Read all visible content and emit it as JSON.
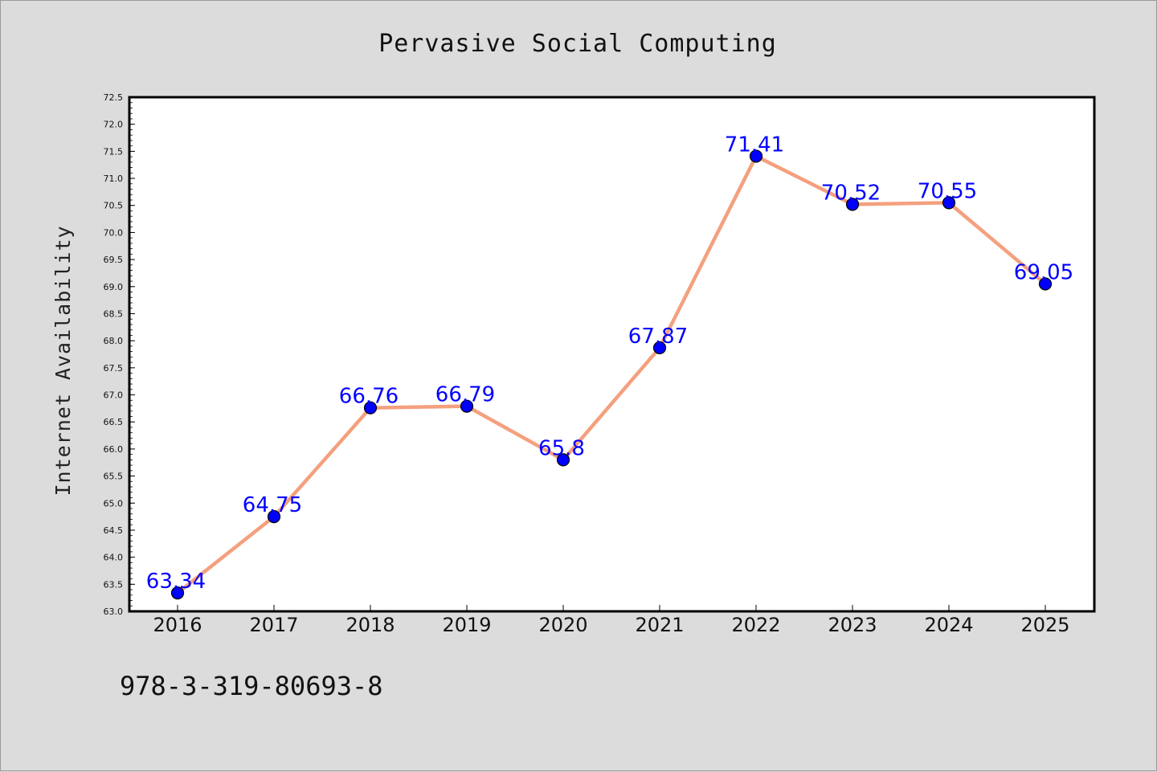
{
  "footer_text": "978-3-319-80693-8",
  "colors": {
    "background": "#dcdcdc",
    "plot_background": "#ffffff",
    "line": "#f4a07e",
    "marker": "#0000ff",
    "data_label": "#0000ff"
  },
  "chart_data": {
    "type": "line",
    "title": "Pervasive Social Computing",
    "xlabel": "",
    "ylabel": "Internet Availability",
    "categories": [
      "2016",
      "2017",
      "2018",
      "2019",
      "2020",
      "2021",
      "2022",
      "2023",
      "2024",
      "2025"
    ],
    "series": [
      {
        "values": [
          63.34,
          64.75,
          66.76,
          66.79,
          65.8,
          67.87,
          71.41,
          70.52,
          70.55,
          69.05
        ],
        "data_labels": [
          "63.34",
          "64.75",
          "66.76",
          "66.79",
          "65.8",
          "67.87",
          "71.41",
          "70.52",
          "70.55",
          "69.05"
        ]
      }
    ],
    "ylim": [
      63.0,
      72.5
    ],
    "yticks": [
      "63.0",
      "63.5",
      "64.0",
      "64.5",
      "65.0",
      "65.5",
      "66.0",
      "66.5",
      "67.0",
      "67.5",
      "68.0",
      "68.5",
      "69.0",
      "69.5",
      "70.0",
      "70.5",
      "71.0",
      "71.5",
      "72.0",
      "72.5"
    ],
    "grid": false,
    "legend": "none"
  }
}
